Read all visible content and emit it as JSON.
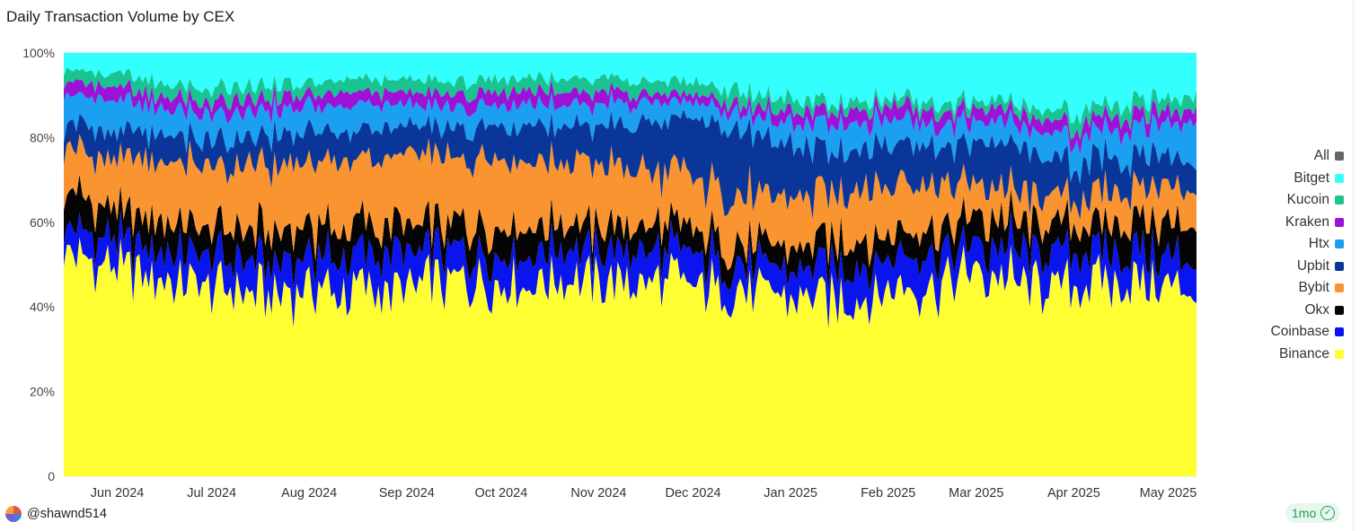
{
  "page": {
    "title": "Daily Transaction Volume by CEX"
  },
  "footer": {
    "username": "@shawnd514",
    "age_badge": "1mo",
    "check_icon": "check-circle-icon"
  },
  "colors": {
    "Bitget": "#33ffff",
    "Kucoin": "#1ac490",
    "Kraken": "#9c12d6",
    "Htx": "#1b9ff0",
    "Upbit": "#0b3699",
    "Bybit": "#f99431",
    "Okx": "#050505",
    "Coinbase": "#0a14ee",
    "Binance": "#fefe33",
    "All": "#666666"
  },
  "chart_data": {
    "type": "area",
    "stacked": true,
    "normalized": true,
    "title": "Daily Transaction Volume by CEX",
    "xlabel": "",
    "ylabel": "",
    "ylim": [
      0,
      100
    ],
    "y_ticks": [
      "0",
      "20%",
      "40%",
      "60%",
      "80%",
      "100%"
    ],
    "x_ticks": [
      "Jun 2024",
      "Jul 2024",
      "Aug 2024",
      "Sep 2024",
      "Oct 2024",
      "Nov 2024",
      "Dec 2024",
      "Jan 2025",
      "Feb 2025",
      "Mar 2025",
      "Apr 2025",
      "May 2025"
    ],
    "legend": [
      "All",
      "Bitget",
      "Kucoin",
      "Kraken",
      "Htx",
      "Upbit",
      "Bybit",
      "Okx",
      "Coinbase",
      "Binance"
    ],
    "legend_position": "right",
    "x": [
      "2024-05-15",
      "2024-06-01",
      "2024-06-15",
      "2024-07-01",
      "2024-07-15",
      "2024-08-01",
      "2024-08-15",
      "2024-09-01",
      "2024-09-15",
      "2024-10-01",
      "2024-10-15",
      "2024-11-01",
      "2024-11-15",
      "2024-12-01",
      "2024-12-15",
      "2025-01-01",
      "2025-01-15",
      "2025-02-01",
      "2025-02-15",
      "2025-03-01",
      "2025-03-15",
      "2025-04-01",
      "2025-04-15",
      "2025-05-01",
      "2025-05-10"
    ],
    "series": [
      {
        "name": "Binance",
        "values": [
          52,
          50,
          47,
          45,
          44,
          44,
          44,
          45,
          46,
          46,
          47,
          47,
          46,
          45,
          44,
          43,
          42,
          44,
          46,
          48,
          47,
          45,
          46,
          45,
          44
        ]
      },
      {
        "name": "Coinbase",
        "values": [
          6,
          6,
          7,
          7,
          7,
          7,
          8,
          8,
          7,
          7,
          7,
          7,
          7,
          7,
          6,
          6,
          8,
          8,
          7,
          6,
          7,
          8,
          7,
          7,
          7
        ]
      },
      {
        "name": "Okx",
        "values": [
          8,
          8,
          7,
          7,
          7,
          7,
          7,
          7,
          6,
          6,
          6,
          6,
          6,
          6,
          5,
          5,
          7,
          6,
          6,
          7,
          7,
          6,
          7,
          8,
          8
        ]
      },
      {
        "name": "Bybit",
        "values": [
          11,
          12,
          14,
          15,
          15,
          16,
          16,
          16,
          16,
          16,
          15,
          14,
          13,
          12,
          12,
          11,
          12,
          12,
          11,
          8,
          7,
          6,
          8,
          9,
          9
        ]
      },
      {
        "name": "Upbit",
        "values": [
          6,
          6,
          6,
          6,
          7,
          7,
          7,
          7,
          7,
          8,
          8,
          9,
          11,
          14,
          15,
          13,
          9,
          9,
          9,
          10,
          10,
          9,
          8,
          7,
          7
        ]
      },
      {
        "name": "Htx",
        "values": [
          7,
          7,
          6,
          6,
          6,
          6,
          6,
          5,
          5,
          5,
          5,
          5,
          5,
          4,
          4,
          5,
          6,
          6,
          5,
          5,
          5,
          6,
          7,
          8,
          9
        ]
      },
      {
        "name": "Kraken",
        "values": [
          3,
          3,
          3,
          3,
          3,
          3,
          3,
          3,
          3,
          3,
          3,
          3,
          2,
          2,
          2,
          3,
          3,
          3,
          3,
          3,
          3,
          3,
          3,
          3,
          3
        ]
      },
      {
        "name": "Kucoin",
        "values": [
          3,
          3,
          3,
          3,
          3,
          3,
          3,
          3,
          3,
          3,
          3,
          3,
          3,
          3,
          3,
          3,
          2,
          2,
          2,
          2,
          2,
          3,
          3,
          3,
          3
        ]
      },
      {
        "name": "Bitget",
        "values": [
          4,
          5,
          7,
          8,
          8,
          7,
          6,
          6,
          7,
          6,
          6,
          6,
          7,
          7,
          9,
          11,
          11,
          10,
          11,
          11,
          12,
          14,
          11,
          10,
          10
        ]
      }
    ]
  }
}
